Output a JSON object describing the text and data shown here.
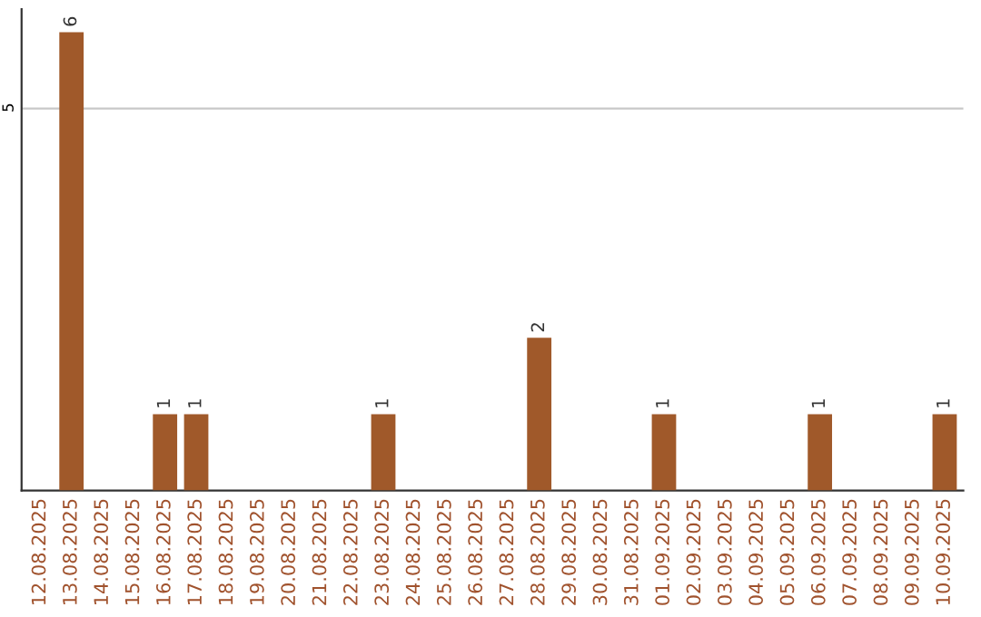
{
  "chart_data": {
    "type": "bar",
    "categories": [
      "12.08.2025",
      "13.08.2025",
      "14.08.2025",
      "15.08.2025",
      "16.08.2025",
      "17.08.2025",
      "18.08.2025",
      "19.08.2025",
      "20.08.2025",
      "21.08.2025",
      "22.08.2025",
      "23.08.2025",
      "24.08.2025",
      "25.08.2025",
      "26.08.2025",
      "27.08.2025",
      "28.08.2025",
      "29.08.2025",
      "30.08.2025",
      "31.08.2025",
      "01.09.2025",
      "02.09.2025",
      "03.09.2025",
      "04.09.2025",
      "05.09.2025",
      "06.09.2025",
      "07.09.2025",
      "08.09.2025",
      "09.09.2025",
      "10.09.2025"
    ],
    "values": [
      0,
      6,
      0,
      0,
      1,
      1,
      0,
      0,
      0,
      0,
      0,
      1,
      0,
      0,
      0,
      0,
      2,
      0,
      0,
      0,
      1,
      0,
      0,
      0,
      0,
      1,
      0,
      0,
      0,
      1
    ],
    "value_labels": [
      null,
      "6",
      null,
      null,
      "1",
      "1",
      null,
      null,
      null,
      null,
      null,
      "1",
      null,
      null,
      null,
      null,
      "2",
      null,
      null,
      null,
      "1",
      null,
      null,
      null,
      null,
      "1",
      null,
      null,
      null,
      "1"
    ],
    "color": "#a0592a",
    "ylim": [
      0,
      6.3
    ],
    "yticks": [
      5
    ],
    "grid": "y"
  }
}
